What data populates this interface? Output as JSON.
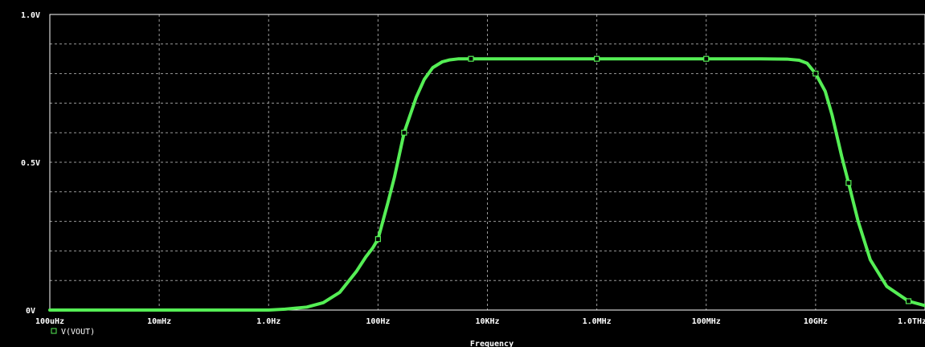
{
  "chart_data": {
    "type": "line",
    "title": "",
    "xlabel": "Frequency",
    "ylabel": "",
    "x_scale": "log",
    "xlim": [
      "100uHz",
      "1.0THz"
    ],
    "xlim_hz": [
      0.0001,
      1000000000000
    ],
    "ylim": [
      0,
      1.0
    ],
    "grid": true,
    "x_tick_labels": [
      "100uHz",
      "10mHz",
      "1.0Hz",
      "100Hz",
      "10KHz",
      "1.0MHz",
      "100MHz",
      "10GHz",
      "1.0THz"
    ],
    "y_tick_labels": [
      "0V",
      "0.5V",
      "1.0V"
    ],
    "series": [
      {
        "name": "V(VOUT)",
        "color": "#55ee55",
        "x_hz": [
          0.0001,
          0.01,
          1,
          2,
          5,
          10,
          20,
          40,
          60,
          80,
          100,
          150,
          200,
          300,
          500,
          700,
          1000,
          1500,
          2000,
          3000,
          5000,
          10000,
          100000,
          1000000,
          10000000,
          100000000,
          1000000000,
          3000000000,
          5000000000,
          7000000000,
          10000000000,
          15000000000,
          20000000000,
          30000000000,
          40000000000,
          60000000000,
          100000000000,
          200000000000,
          500000000000,
          1000000000000
        ],
        "v": [
          0.0,
          0.0,
          0.0,
          0.003,
          0.01,
          0.025,
          0.06,
          0.13,
          0.18,
          0.21,
          0.24,
          0.36,
          0.45,
          0.6,
          0.72,
          0.78,
          0.82,
          0.84,
          0.846,
          0.85,
          0.85,
          0.85,
          0.85,
          0.85,
          0.85,
          0.85,
          0.85,
          0.849,
          0.845,
          0.835,
          0.8,
          0.74,
          0.66,
          0.52,
          0.43,
          0.3,
          0.17,
          0.08,
          0.03,
          0.015
        ],
        "marker_x_hz": [
          100,
          300,
          5000,
          1000000,
          100000000,
          10000000000,
          40000000000,
          500000000000
        ]
      }
    ]
  }
}
